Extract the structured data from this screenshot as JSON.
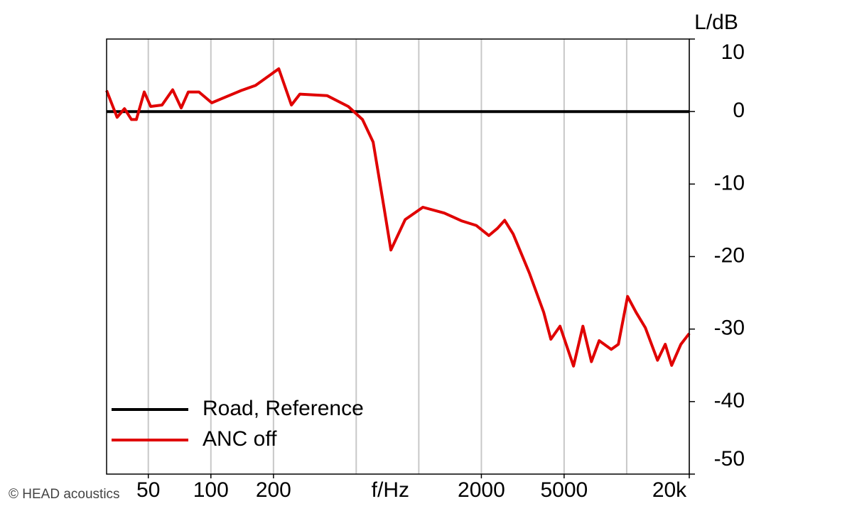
{
  "chart_data": {
    "type": "line",
    "x_label": "f/Hz",
    "y_label": "L/dB",
    "annotation": "© HEAD acoustics",
    "log_x": true,
    "grid": true,
    "legend": "lower-left",
    "xlim": [
      31.5,
      20000
    ],
    "ylim": [
      -50,
      10
    ],
    "xticks": [
      50,
      100,
      200,
      2000,
      5000,
      {
        "value": 20000,
        "label": "20k"
      }
    ],
    "minor_xticks": [
      500,
      1000,
      10000
    ],
    "yticks": [
      10,
      0,
      -10,
      -20,
      -30,
      -40,
      -50
    ],
    "x": [
      31.5,
      35.4,
      38.4,
      41.5,
      43.8,
      47.8,
      51.3,
      58.2,
      65.5,
      72,
      77.9,
      87.6,
      101,
      111,
      140,
      164,
      212,
      244,
      268,
      362,
      458,
      536,
      603,
      678,
      734,
      860,
      1046,
      1326,
      1613,
      1888,
      2174,
      2391,
      2589,
      2845,
      3408,
      3991,
      4316,
      4779,
      5550,
      6155,
      6766,
      7371,
      8426,
      9116,
      10099,
      11101,
      12285,
      14071,
      15328,
      16456,
      18229,
      20000
    ],
    "series": [
      {
        "name": "Road, Reference",
        "color": "#000000",
        "values": [
          0,
          0,
          0,
          0,
          0,
          0,
          0,
          0,
          0,
          0,
          0,
          0,
          0,
          0,
          0,
          0,
          0,
          0,
          0,
          0,
          0,
          0,
          0,
          0,
          0,
          0,
          0,
          0,
          0,
          0,
          0,
          0,
          0,
          0,
          0,
          0,
          0,
          0,
          0,
          0,
          0,
          0,
          0,
          0,
          0,
          0,
          0,
          0,
          0,
          0,
          0,
          0
        ]
      },
      {
        "name": "ANC off",
        "color": "#e00000",
        "values": [
          2.9,
          -0.8,
          0.4,
          -1.1,
          -1.1,
          2.7,
          0.7,
          0.9,
          3.0,
          0.5,
          2.7,
          2.7,
          1.2,
          1.7,
          2.9,
          3.6,
          5.9,
          0.9,
          2.4,
          2.2,
          0.7,
          -1.1,
          -4.2,
          -13,
          -19.1,
          -14.9,
          -13.2,
          -14,
          -15.1,
          -15.7,
          -17.1,
          -16.1,
          -15,
          -16.9,
          -22.3,
          -27.7,
          -31.4,
          -29.6,
          -35.1,
          -29.6,
          -34.5,
          -31.6,
          -32.8,
          -32.1,
          -25.5,
          -27.7,
          -29.8,
          -34.3,
          -32.1,
          -35,
          -32.1,
          -30.6
        ]
      }
    ]
  }
}
